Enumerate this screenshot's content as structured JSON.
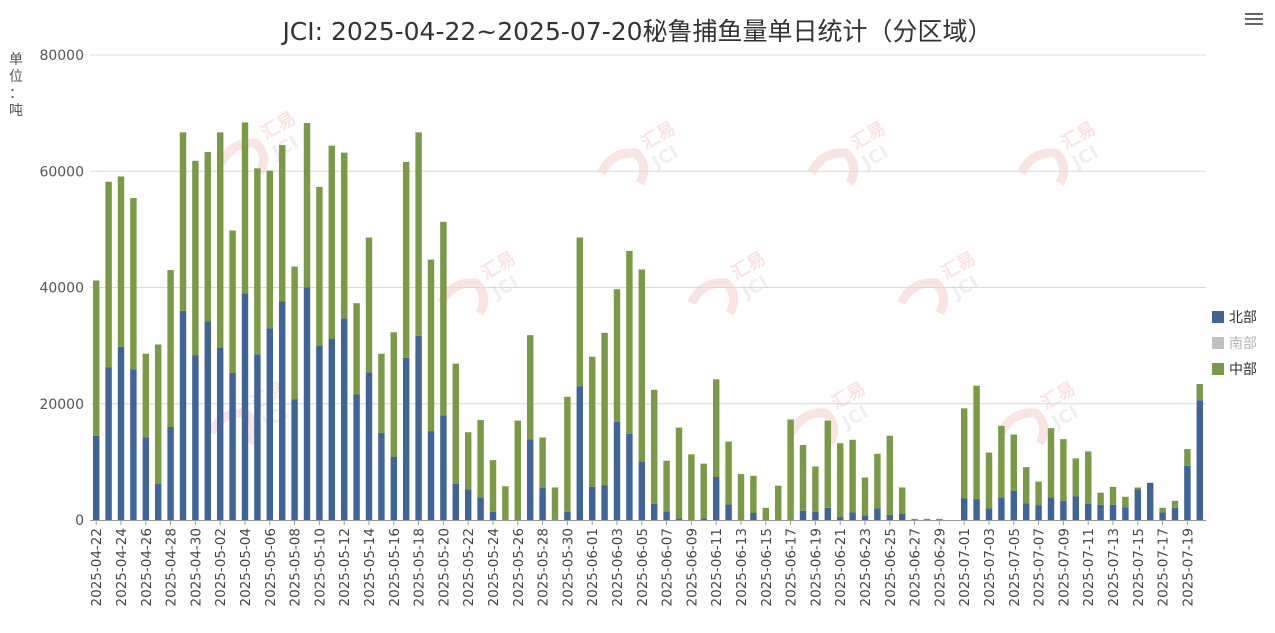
{
  "title": "JCI: 2025-04-22~2025-07-20秘鲁捕鱼量单日统计（分区域）",
  "watermark": [
    "汇易",
    "JCI"
  ],
  "chart_data": {
    "type": "bar",
    "stacked": true,
    "ylabel": "单位：吨",
    "ylim": [
      0,
      80000
    ],
    "yticks": [
      0,
      20000,
      40000,
      60000,
      80000
    ],
    "grid": true,
    "legend_position": "right",
    "categories": [
      "2025-04-22",
      "2025-04-23",
      "2025-04-24",
      "2025-04-25",
      "2025-04-26",
      "2025-04-27",
      "2025-04-28",
      "2025-04-29",
      "2025-04-30",
      "2025-05-01",
      "2025-05-02",
      "2025-05-03",
      "2025-05-04",
      "2025-05-05",
      "2025-05-06",
      "2025-05-07",
      "2025-05-08",
      "2025-05-09",
      "2025-05-10",
      "2025-05-11",
      "2025-05-12",
      "2025-05-13",
      "2025-05-14",
      "2025-05-15",
      "2025-05-16",
      "2025-05-17",
      "2025-05-18",
      "2025-05-19",
      "2025-05-20",
      "2025-05-21",
      "2025-05-22",
      "2025-05-23",
      "2025-05-24",
      "2025-05-25",
      "2025-05-26",
      "2025-05-27",
      "2025-05-28",
      "2025-05-29",
      "2025-05-30",
      "2025-05-31",
      "2025-06-01",
      "2025-06-02",
      "2025-06-03",
      "2025-06-04",
      "2025-06-05",
      "2025-06-06",
      "2025-06-07",
      "2025-06-08",
      "2025-06-09",
      "2025-06-10",
      "2025-06-11",
      "2025-06-12",
      "2025-06-13",
      "2025-06-14",
      "2025-06-15",
      "2025-06-16",
      "2025-06-17",
      "2025-06-18",
      "2025-06-19",
      "2025-06-20",
      "2025-06-21",
      "2025-06-22",
      "2025-06-23",
      "2025-06-24",
      "2025-06-25",
      "2025-06-26",
      "2025-06-27",
      "2025-06-28",
      "2025-06-29",
      "2025-06-30",
      "2025-07-01",
      "2025-07-02",
      "2025-07-03",
      "2025-07-04",
      "2025-07-05",
      "2025-07-06",
      "2025-07-07",
      "2025-07-08",
      "2025-07-09",
      "2025-07-10",
      "2025-07-11",
      "2025-07-12",
      "2025-07-13",
      "2025-07-14",
      "2025-07-15",
      "2025-07-16",
      "2025-07-17",
      "2025-07-18",
      "2025-07-19",
      "2025-07-20"
    ],
    "x_tick_labels": [
      "2025-04-22",
      "2025-04-24",
      "2025-04-26",
      "2025-04-28",
      "2025-04-30",
      "2025-05-02",
      "2025-05-04",
      "2025-05-06",
      "2025-05-08",
      "2025-05-10",
      "2025-05-12",
      "2025-05-14",
      "2025-05-16",
      "2025-05-18",
      "2025-05-20",
      "2025-05-22",
      "2025-05-24",
      "2025-05-26",
      "2025-05-28",
      "2025-05-30",
      "2025-06-01",
      "2025-06-03",
      "2025-06-05",
      "2025-06-07",
      "2025-06-09",
      "2025-06-11",
      "2025-06-13",
      "2025-06-15",
      "2025-06-17",
      "2025-06-19",
      "2025-06-21",
      "2025-06-23",
      "2025-06-25",
      "2025-06-27",
      "2025-06-29",
      "2025-07-01",
      "2025-07-03",
      "2025-07-05",
      "2025-07-07",
      "2025-07-09",
      "2025-07-11",
      "2025-07-13",
      "2025-07-15",
      "2025-07-17",
      "2025-07-19"
    ],
    "series": [
      {
        "name": "北部",
        "color": "#3f6598",
        "visible": true,
        "values": [
          14500,
          26300,
          29800,
          25900,
          14200,
          6200,
          16000,
          36000,
          28300,
          34200,
          29700,
          25300,
          39000,
          28500,
          33000,
          37600,
          20800,
          40000,
          30000,
          31200,
          34700,
          21600,
          25400,
          15000,
          10900,
          27900,
          31700,
          15300,
          18000,
          6200,
          5300,
          3900,
          1400,
          0,
          0,
          13900,
          5500,
          0,
          1400,
          23000,
          5700,
          6000,
          16900,
          14800,
          10100,
          2800,
          1500,
          300,
          0,
          300,
          7400,
          2700,
          0,
          1200,
          0,
          0,
          0,
          1600,
          1400,
          2100,
          500,
          1300,
          800,
          2000,
          900,
          1100,
          0,
          0,
          0,
          0,
          3700,
          3600,
          2000,
          3900,
          5000,
          2900,
          2500,
          3900,
          3300,
          4100,
          2800,
          2600,
          2600,
          2200,
          5300,
          6400,
          1300,
          2100,
          9300,
          20600
        ]
      },
      {
        "name": "南部",
        "color": "#c0c0c0",
        "visible": false,
        "values": [
          0,
          0,
          0,
          0,
          0,
          0,
          0,
          0,
          0,
          0,
          0,
          0,
          0,
          0,
          0,
          0,
          0,
          0,
          0,
          0,
          0,
          0,
          0,
          0,
          0,
          0,
          0,
          0,
          0,
          0,
          0,
          0,
          0,
          0,
          0,
          0,
          0,
          0,
          0,
          0,
          0,
          0,
          0,
          0,
          0,
          0,
          0,
          0,
          0,
          0,
          0,
          0,
          0,
          0,
          0,
          0,
          0,
          0,
          0,
          0,
          0,
          0,
          0,
          0,
          0,
          0,
          0,
          0,
          0,
          0,
          0,
          0,
          0,
          0,
          0,
          0,
          0,
          0,
          0,
          0,
          0,
          0,
          0,
          0,
          0,
          0,
          0,
          0,
          0,
          0
        ]
      },
      {
        "name": "中部",
        "color": "#7a9a45",
        "visible": true,
        "values": [
          26700,
          31900,
          29300,
          29500,
          14400,
          24000,
          27000,
          30700,
          33500,
          29100,
          37000,
          24500,
          29400,
          32000,
          27100,
          26900,
          22800,
          28300,
          27300,
          33200,
          28500,
          15700,
          23200,
          13600,
          21400,
          33700,
          35000,
          29500,
          33300,
          20700,
          9800,
          13300,
          8900,
          5800,
          17100,
          17900,
          8700,
          5600,
          19800,
          25600,
          22400,
          26200,
          22800,
          31500,
          33000,
          19600,
          8700,
          15600,
          11300,
          9400,
          16800,
          10800,
          7900,
          6400,
          2100,
          5900,
          17300,
          11300,
          7800,
          15000,
          12700,
          12500,
          6500,
          9400,
          13600,
          4500,
          200,
          200,
          200,
          0,
          15500,
          19500,
          9600,
          12300,
          9700,
          6200,
          4100,
          11900,
          10600,
          6500,
          9000,
          2100,
          3100,
          1800,
          300,
          0,
          800,
          1200,
          2900,
          2800
        ]
      }
    ]
  },
  "menu_icon": "hamburger-menu-icon"
}
